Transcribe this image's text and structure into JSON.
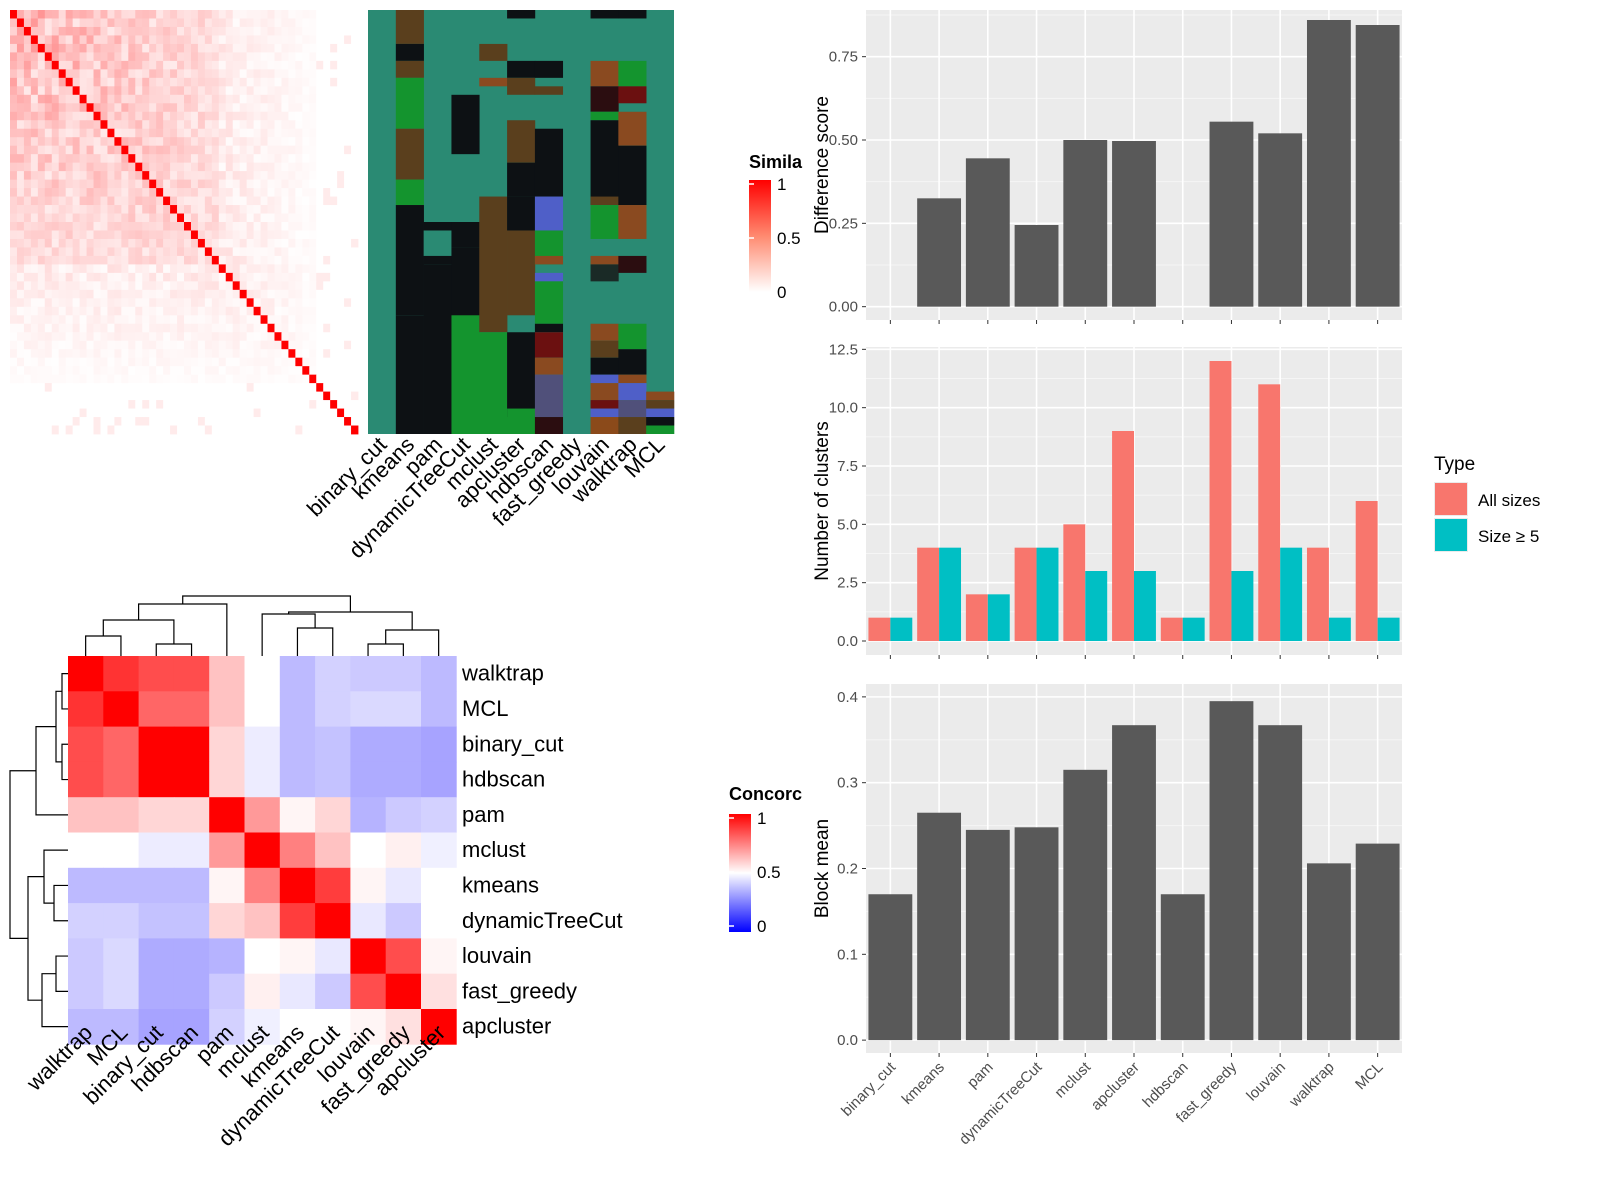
{
  "chart_data": [
    {
      "type": "heatmap",
      "name": "similarity-heatmap",
      "legend_title": "Similarity",
      "legend_ticks": [
        "1",
        "0.5",
        "0"
      ],
      "color_range": [
        "#ffffff",
        "#ff0000"
      ],
      "size": 50
    },
    {
      "type": "heatmap",
      "name": "cluster-membership",
      "columns": [
        "binary_cut",
        "kmeans",
        "pam",
        "dynamicTreeCut",
        "mclust",
        "apcluster",
        "hdbscan",
        "fast_greedy",
        "louvain",
        "walktrap",
        "MCL"
      ],
      "background": "#2a8a73",
      "cluster_colors": [
        "#2a8a73",
        "#5a3f1d",
        "#0d1114",
        "#14942e",
        "#8a4a20",
        "#4f5fc8",
        "#6b1010",
        "#50507a",
        "#1a2a26",
        "#8b4a1a",
        "#2b0d10"
      ]
    },
    {
      "type": "heatmap",
      "name": "concordance-heatmap",
      "legend_title": "Concordance",
      "legend_ticks": [
        "1",
        "0.5",
        "0"
      ],
      "color_range": [
        "#0000ff",
        "#ffffff",
        "#ff0000"
      ],
      "rows": [
        "walktrap",
        "MCL",
        "binary_cut",
        "hdbscan",
        "pam",
        "mclust",
        "kmeans",
        "dynamicTreeCut",
        "louvain",
        "fast_greedy",
        "apcluster"
      ],
      "columns": [
        "walktrap",
        "MCL",
        "binary_cut",
        "hdbscan",
        "pam",
        "mclust",
        "kmeans",
        "dynamicTreeCut",
        "louvain",
        "fast_greedy",
        "apcluster"
      ],
      "values": [
        [
          1.0,
          0.9,
          0.85,
          0.85,
          0.62,
          0.5,
          0.32,
          0.38,
          0.36,
          0.36,
          0.32
        ],
        [
          0.9,
          1.0,
          0.8,
          0.8,
          0.62,
          0.5,
          0.32,
          0.38,
          0.4,
          0.4,
          0.32
        ],
        [
          0.85,
          0.8,
          1.0,
          1.0,
          0.58,
          0.45,
          0.32,
          0.34,
          0.28,
          0.28,
          0.26
        ],
        [
          0.85,
          0.8,
          1.0,
          1.0,
          0.58,
          0.45,
          0.32,
          0.34,
          0.28,
          0.28,
          0.26
        ],
        [
          0.62,
          0.62,
          0.58,
          0.58,
          1.0,
          0.7,
          0.52,
          0.58,
          0.3,
          0.36,
          0.38
        ],
        [
          0.5,
          0.5,
          0.45,
          0.45,
          0.7,
          1.0,
          0.75,
          0.62,
          0.5,
          0.53,
          0.46
        ],
        [
          0.32,
          0.32,
          0.32,
          0.32,
          0.52,
          0.75,
          1.0,
          0.88,
          0.52,
          0.44,
          0.5
        ],
        [
          0.38,
          0.38,
          0.34,
          0.34,
          0.58,
          0.62,
          0.88,
          1.0,
          0.44,
          0.36,
          0.5
        ],
        [
          0.36,
          0.4,
          0.28,
          0.28,
          0.3,
          0.5,
          0.52,
          0.44,
          1.0,
          0.85,
          0.52
        ],
        [
          0.36,
          0.4,
          0.28,
          0.28,
          0.36,
          0.53,
          0.44,
          0.36,
          0.85,
          1.0,
          0.56
        ],
        [
          0.32,
          0.32,
          0.26,
          0.26,
          0.38,
          0.46,
          0.5,
          0.5,
          0.52,
          0.56,
          1.0
        ]
      ]
    },
    {
      "type": "bar",
      "name": "difference-score",
      "categories": [
        "binary_cut",
        "kmeans",
        "pam",
        "dynamicTreeCut",
        "mclust",
        "apcluster",
        "hdbscan",
        "fast_greedy",
        "louvain",
        "walktrap",
        "MCL"
      ],
      "values": [
        0,
        0.325,
        0.445,
        0.245,
        0.5,
        0.497,
        0,
        0.555,
        0.52,
        0.86,
        0.845
      ],
      "ylabel": "Difference score",
      "ylim": [
        -0.04,
        0.89
      ],
      "yticks": [
        "0.00",
        "0.25",
        "0.50",
        "0.75"
      ],
      "color": "#595959",
      "grid": true
    },
    {
      "type": "bar",
      "name": "number-of-clusters",
      "categories": [
        "binary_cut",
        "kmeans",
        "pam",
        "dynamicTreeCut",
        "mclust",
        "apcluster",
        "hdbscan",
        "fast_greedy",
        "louvain",
        "walktrap",
        "MCL"
      ],
      "series": [
        {
          "name": "All sizes",
          "color": "#f8766d",
          "values": [
            1,
            4,
            2,
            4,
            5,
            9,
            1,
            12,
            11,
            4,
            6
          ]
        },
        {
          "name": "Size ≥ 5",
          "color": "#00bfc4",
          "values": [
            1,
            4,
            2,
            4,
            3,
            3,
            1,
            3,
            4,
            1,
            1
          ]
        }
      ],
      "ylabel": "Number of clusters",
      "ylim": [
        -0.6,
        12.6
      ],
      "yticks": [
        "0.0",
        "2.5",
        "5.0",
        "7.5",
        "10.0",
        "12.5"
      ],
      "legend_title": "Type",
      "legend_position": "right",
      "grid": true
    },
    {
      "type": "bar",
      "name": "block-mean",
      "categories": [
        "binary_cut",
        "kmeans",
        "pam",
        "dynamicTreeCut",
        "mclust",
        "apcluster",
        "hdbscan",
        "fast_greedy",
        "louvain",
        "walktrap",
        "MCL"
      ],
      "values": [
        0.17,
        0.265,
        0.245,
        0.248,
        0.315,
        0.367,
        0.17,
        0.395,
        0.367,
        0.206,
        0.229
      ],
      "ylabel": "Block mean",
      "ylim": [
        -0.015,
        0.415
      ],
      "yticks": [
        "0.0",
        "0.1",
        "0.2",
        "0.3",
        "0.4"
      ],
      "color": "#595959",
      "grid": true
    }
  ]
}
